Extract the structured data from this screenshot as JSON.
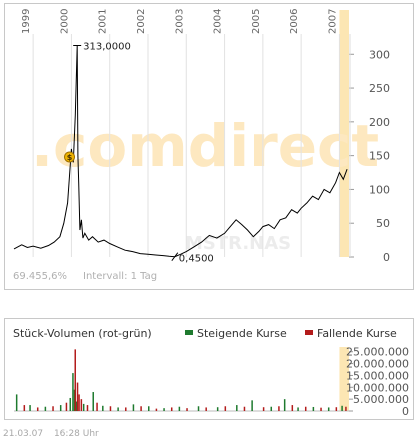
{
  "price_chart": {
    "year_labels": [
      "1999",
      "2000",
      "2001",
      "2002",
      "2003",
      "2004",
      "2005",
      "2006",
      "2007"
    ],
    "watermark": ".comdirect",
    "symbol_watermark": "MSTR.NAS",
    "high_annotation": "313,0000",
    "low_annotation": "0,4500",
    "info_text": "69.455,6%",
    "interval_text": "Intervall: 1 Tag",
    "marker_symbol": "$",
    "colors": {
      "line": "#000000",
      "watermark": "#fde8c0",
      "highlight": "#fce6b3",
      "axis_text": "#666666",
      "grid": "#e2e2e2"
    }
  },
  "volume_chart": {
    "title": "Stück-Volumen (rot-grün)",
    "legend": [
      {
        "label": "Steigende Kurse",
        "color": "#1e7a2e"
      },
      {
        "label": "Fallende Kurse",
        "color": "#b31b1b"
      }
    ]
  },
  "footer": {
    "date": "21.03.07",
    "time": "16:28 Uhr"
  },
  "chart_data": [
    {
      "type": "line",
      "title": "",
      "xlabel": "",
      "ylabel": "",
      "ylim": [
        0,
        330
      ],
      "yticks": [
        0,
        50,
        100,
        150,
        200,
        250,
        300
      ],
      "x_range": [
        1998.5,
        2007.25
      ],
      "series": [
        {
          "x": [
            1998.5,
            1998.7,
            1998.85,
            1999.0,
            1999.2,
            1999.4,
            1999.55,
            1999.7,
            1999.8,
            1999.9,
            1999.95,
            2000.0,
            2000.05,
            2000.1,
            2000.15,
            2000.17,
            2000.19,
            2000.22,
            2000.26,
            2000.3,
            2000.35,
            2000.45,
            2000.55,
            2000.7,
            2000.85,
            2001.0,
            2001.2,
            2001.4,
            2001.6,
            2001.8,
            2002.0,
            2002.2,
            2002.4,
            2002.55,
            2002.7,
            2002.85,
            2003.0,
            2003.2,
            2003.4,
            2003.6,
            2003.8,
            2004.0,
            2004.15,
            2004.3,
            2004.45,
            2004.6,
            2004.75,
            2004.9,
            2005.0,
            2005.15,
            2005.3,
            2005.45,
            2005.6,
            2005.75,
            2005.9,
            2006.0,
            2006.15,
            2006.3,
            2006.45,
            2006.6,
            2006.75,
            2006.9,
            2007.0,
            2007.1,
            2007.2
          ],
          "y": [
            12,
            18,
            14,
            16,
            13,
            17,
            22,
            30,
            50,
            80,
            120,
            160,
            140,
            210,
            313,
            150,
            110,
            40,
            55,
            28,
            35,
            25,
            30,
            22,
            25,
            20,
            15,
            10,
            8,
            5,
            4,
            3,
            2,
            1,
            0.45,
            4,
            8,
            15,
            22,
            32,
            28,
            35,
            45,
            55,
            48,
            40,
            30,
            38,
            45,
            48,
            42,
            55,
            58,
            70,
            65,
            72,
            80,
            90,
            85,
            100,
            95,
            110,
            125,
            115,
            130
          ]
        }
      ],
      "annotations": [
        "313,0000",
        "0,4500"
      ]
    },
    {
      "type": "bar",
      "title": "Stück-Volumen (rot-grün)",
      "ylim": [
        0,
        27000000
      ],
      "yticks": [
        "0",
        "5.000.000",
        "10.000.000",
        "15.000.000",
        "20.000.000",
        "25.000.000"
      ],
      "ytick_values": [
        0,
        5000000,
        10000000,
        15000000,
        20000000,
        25000000
      ],
      "legend": [
        "Steigende Kurse",
        "Fallende Kurse"
      ],
      "series": [
        {
          "name": "Steigende Kurse",
          "x": [
            1998.55,
            1998.9,
            1999.3,
            1999.7,
            1999.95,
            2000.02,
            2000.06,
            2000.12,
            2000.3,
            2000.55,
            2000.8,
            2001.2,
            2001.6,
            2002.0,
            2002.4,
            2002.8,
            2003.3,
            2003.8,
            2004.3,
            2004.7,
            2005.2,
            2005.55,
            2005.9,
            2006.3,
            2006.7,
            2007.05
          ],
          "y": [
            7000000,
            2500000,
            1800000,
            2500000,
            5500000,
            16000000,
            9000000,
            4000000,
            3000000,
            8000000,
            2200000,
            1500000,
            2800000,
            2000000,
            1200000,
            1800000,
            2000000,
            1600000,
            2500000,
            4500000,
            1800000,
            5000000,
            1500000,
            1700000,
            1500000,
            2200000
          ]
        },
        {
          "name": "Fallende Kurse",
          "x": [
            1998.75,
            1999.1,
            1999.5,
            1999.85,
            2000.08,
            2000.14,
            2000.18,
            2000.24,
            2000.4,
            2000.65,
            2001.0,
            2001.4,
            2001.8,
            2002.2,
            2002.6,
            2003.0,
            2003.5,
            2004.0,
            2004.5,
            2005.0,
            2005.4,
            2005.75,
            2006.1,
            2006.5,
            2006.9,
            2007.15
          ],
          "y": [
            2500000,
            1500000,
            2000000,
            3500000,
            26000000,
            12000000,
            7000000,
            5000000,
            2500000,
            3500000,
            2000000,
            1500000,
            2000000,
            1000000,
            1500000,
            1200000,
            1500000,
            2000000,
            1800000,
            1600000,
            2000000,
            2500000,
            1800000,
            1400000,
            1600000,
            1800000
          ]
        }
      ]
    }
  ]
}
